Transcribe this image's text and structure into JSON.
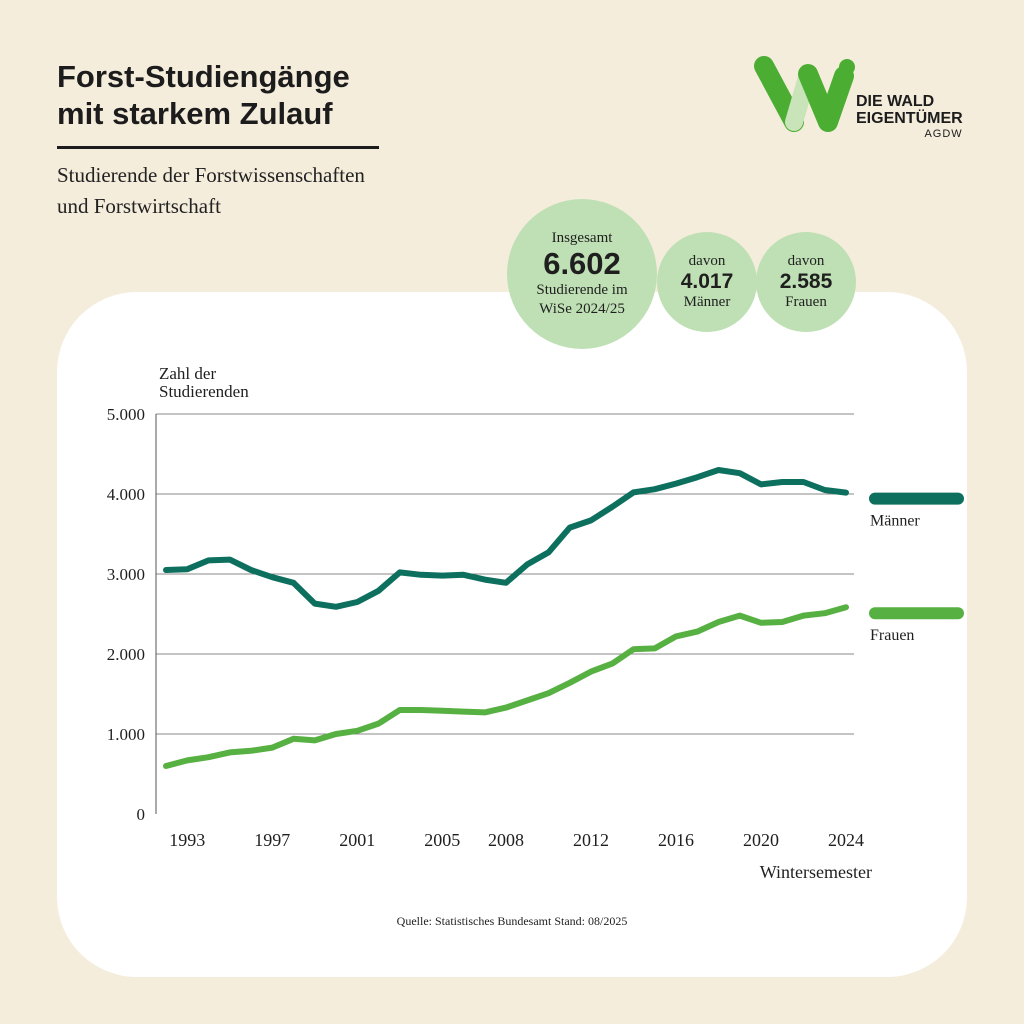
{
  "header": {
    "title_line1": "Forst-Studiengänge",
    "title_line2": "mit starkem Zulauf",
    "subtitle_line1": "Studierende der Forstwissenschaften",
    "subtitle_line2": "und Forstwirtschaft"
  },
  "logo": {
    "line1": "DIE WALD",
    "line2": "EIGENTÜMER",
    "line3": "AGDW",
    "colors": {
      "green": "#4bae33",
      "light": "#c8e4b8"
    }
  },
  "stats": {
    "total": {
      "top": "Insgesamt",
      "value": "6.602",
      "bottom1": "Studierende im",
      "bottom2": "WiSe 2024/25"
    },
    "men": {
      "top": "davon",
      "value": "4.017",
      "bottom": "Männer"
    },
    "women": {
      "top": "davon",
      "value": "2.585",
      "bottom": "Frauen"
    }
  },
  "source": "Quelle: Statistisches Bundesamt  Stand: 08/2025",
  "colors": {
    "background": "#f5eddc",
    "card": "#ffffff",
    "bubble": "#bfe0b4",
    "men": "#0d705e",
    "women": "#57b042",
    "grid": "#8a8a8a"
  },
  "chart_data": {
    "type": "line",
    "ylabel_line1": "Zahl der",
    "ylabel_line2": "Studierenden",
    "xlabel": "Wintersemester",
    "ylim": [
      0,
      5000
    ],
    "xlim": [
      1992,
      2024
    ],
    "yticks": [
      {
        "value": 0,
        "label": "0"
      },
      {
        "value": 1000,
        "label": "1.000"
      },
      {
        "value": 2000,
        "label": "2.000"
      },
      {
        "value": 3000,
        "label": "3.000"
      },
      {
        "value": 4000,
        "label": "4.000"
      },
      {
        "value": 5000,
        "label": "5.000"
      }
    ],
    "xticks": [
      {
        "value": 1993,
        "label": "1993"
      },
      {
        "value": 1997,
        "label": "1997"
      },
      {
        "value": 2001,
        "label": "2001"
      },
      {
        "value": 2005,
        "label": "2005"
      },
      {
        "value": 2008,
        "label": "2008"
      },
      {
        "value": 2012,
        "label": "2012"
      },
      {
        "value": 2016,
        "label": "2016"
      },
      {
        "value": 2020,
        "label": "2020"
      },
      {
        "value": 2024,
        "label": "2024"
      }
    ],
    "grid": "horizontal",
    "legend": "right",
    "x": [
      1992,
      1993,
      1994,
      1995,
      1996,
      1997,
      1998,
      1999,
      2000,
      2001,
      2002,
      2003,
      2004,
      2005,
      2006,
      2007,
      2008,
      2009,
      2010,
      2011,
      2012,
      2013,
      2014,
      2015,
      2016,
      2017,
      2018,
      2019,
      2020,
      2021,
      2022,
      2023,
      2024
    ],
    "series": [
      {
        "name": "Männer",
        "color": "#0d705e",
        "values": [
          3050,
          3060,
          3170,
          3180,
          3050,
          2960,
          2890,
          2630,
          2590,
          2650,
          2790,
          3020,
          2990,
          2980,
          2990,
          2930,
          2890,
          3120,
          3270,
          3580,
          3670,
          3840,
          4020,
          4060,
          4130,
          4210,
          4300,
          4260,
          4120,
          4150,
          4150,
          4050,
          4017
        ]
      },
      {
        "name": "Frauen",
        "color": "#57b042",
        "values": [
          600,
          670,
          710,
          770,
          790,
          830,
          940,
          920,
          1000,
          1040,
          1130,
          1300,
          1300,
          1290,
          1280,
          1270,
          1330,
          1420,
          1510,
          1640,
          1780,
          1880,
          2060,
          2070,
          2220,
          2280,
          2400,
          2480,
          2390,
          2400,
          2480,
          2510,
          2585
        ]
      }
    ]
  }
}
